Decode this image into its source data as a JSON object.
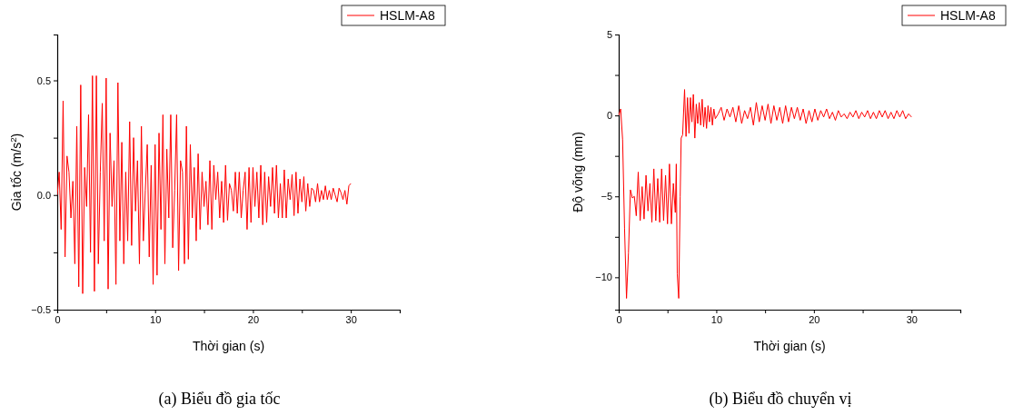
{
  "chart_data": [
    {
      "type": "line",
      "title": "(a)  Biểu đồ gia tốc",
      "xlabel": "Thời gian (s)",
      "ylabel": "Gia tốc (m/s$^{2}$)",
      "legend": "top right",
      "grid": false,
      "xlim": [
        0,
        35
      ],
      "xticks": [
        0,
        {
          "value": 5,
          "label": null
        },
        10,
        {
          "value": 15,
          "label": null
        },
        20,
        {
          "value": 25,
          "label": null
        },
        30,
        {
          "value": 35,
          "label": null
        }
      ],
      "ylim": [
        -0.5,
        0.7
      ],
      "yticks": [
        {
          "value": -0.5,
          "label": "−0.5"
        },
        {
          "value": -0.25,
          "label": null
        },
        {
          "value": 0,
          "label": "0.0"
        },
        {
          "value": 0.25,
          "label": null
        },
        0.5
      ],
      "series": [
        {
          "name": "HSLM-A8",
          "color": "#ff0000",
          "x": [
            0,
            0.2,
            0.4,
            0.6,
            0.8,
            1,
            1.2,
            1.4,
            1.6,
            1.8,
            2,
            2.2,
            2.4,
            2.6,
            2.8,
            3,
            3.2,
            3.4,
            3.6,
            3.8,
            4,
            4.2,
            4.4,
            4.6,
            4.8,
            5,
            5.2,
            5.4,
            5.6,
            5.8,
            6,
            6.2,
            6.4,
            6.6,
            6.8,
            7,
            7.2,
            7.4,
            7.6,
            7.8,
            8,
            8.2,
            8.4,
            8.6,
            8.8,
            9,
            9.2,
            9.4,
            9.6,
            9.8,
            10,
            10.2,
            10.4,
            10.6,
            10.8,
            11,
            11.2,
            11.4,
            11.6,
            11.8,
            12,
            12.2,
            12.4,
            12.6,
            12.8,
            13,
            13.2,
            13.4,
            13.6,
            13.8,
            14,
            14.2,
            14.4,
            14.6,
            14.8,
            15,
            15.2,
            15.4,
            15.6,
            15.8,
            16,
            16.2,
            16.4,
            16.6,
            16.8,
            17,
            17.2,
            17.4,
            17.6,
            17.8,
            18,
            18.2,
            18.4,
            18.6,
            18.8,
            19,
            19.2,
            19.4,
            19.6,
            19.8,
            20,
            20.2,
            20.4,
            20.6,
            20.8,
            21,
            21.2,
            21.4,
            21.6,
            21.8,
            22,
            22.2,
            22.4,
            22.6,
            22.8,
            23,
            23.2,
            23.4,
            23.6,
            23.8,
            24,
            24.2,
            24.4,
            24.6,
            24.8,
            25,
            25.2,
            25.4,
            25.6,
            25.8,
            26,
            26.2,
            26.4,
            26.6,
            26.8,
            27,
            27.2,
            27.4,
            27.6,
            27.8,
            28,
            28.2,
            28.4,
            28.6,
            28.8,
            29,
            29.2,
            29.4,
            29.6,
            29.8,
            30
          ],
          "values": [
            0,
            0.1,
            -0.15,
            0.41,
            -0.27,
            0.17,
            0.1,
            -0.1,
            0.06,
            -0.3,
            0.3,
            -0.4,
            0.48,
            -0.43,
            0.12,
            -0.05,
            0.35,
            -0.25,
            0.52,
            -0.42,
            0.52,
            -0.3,
            0.1,
            0.4,
            -0.2,
            0.51,
            -0.41,
            0.27,
            -0.05,
            0.15,
            -0.39,
            0.49,
            -0.2,
            0.23,
            -0.3,
            0.1,
            -0.2,
            0.32,
            -0.22,
            0.25,
            -0.07,
            0.15,
            -0.3,
            0.3,
            -0.2,
            0.02,
            0.22,
            -0.27,
            0.13,
            -0.39,
            0.22,
            -0.35,
            0.27,
            -0.15,
            0.35,
            -0.3,
            0.2,
            -0.1,
            0.35,
            -0.23,
            0.02,
            0.35,
            -0.33,
            0.15,
            0.1,
            -0.3,
            0.3,
            -0.28,
            0.22,
            -0.1,
            0.12,
            -0.2,
            0.18,
            -0.15,
            0.1,
            -0.05,
            0.06,
            -0.13,
            0.15,
            -0.15,
            0.13,
            -0.02,
            0.1,
            -0.1,
            0.06,
            -0.12,
            0.13,
            -0.11,
            0.05,
            0.02,
            -0.07,
            0.1,
            -0.08,
            0.1,
            -0.1,
            0.02,
            0.1,
            -0.15,
            0.12,
            -0.12,
            0.12,
            -0.05,
            0.1,
            -0.1,
            0.13,
            -0.13,
            0.1,
            -0.12,
            0.08,
            -0.05,
            0.12,
            -0.08,
            0.13,
            -0.1,
            0.05,
            -0.1,
            0.11,
            -0.1,
            0.07,
            -0.02,
            0.09,
            -0.09,
            0.1,
            -0.08,
            0.07,
            -0.03,
            0.08,
            -0.07,
            0.05,
            -0.05,
            0.03,
            0.02,
            -0.03,
            0.05,
            -0.03,
            0.02,
            -0.02,
            0.04,
            -0.02,
            0.02,
            -0.02,
            0.03,
            0,
            -0.03,
            0.03,
            0.01,
            -0.02,
            0.02,
            -0.04,
            0.04,
            0.05
          ]
        }
      ]
    },
    {
      "type": "line",
      "title": "(b)  Biểu đồ chuyển vị",
      "xlabel": "Thời gian (s)",
      "ylabel": "Độ võng (mm)",
      "legend": "top right",
      "grid": false,
      "xlim": [
        0,
        35
      ],
      "xticks": [
        0,
        {
          "value": 5,
          "label": null
        },
        10,
        {
          "value": 15,
          "label": null
        },
        20,
        {
          "value": 25,
          "label": null
        },
        30,
        {
          "value": 35,
          "label": null
        }
      ],
      "ylim": [
        -12,
        5
      ],
      "yticks": [
        {
          "value": -10,
          "label": "−10"
        },
        {
          "value": -7.5,
          "label": null
        },
        {
          "value": -5,
          "label": "−5"
        },
        {
          "value": -2.5,
          "label": null
        },
        0,
        {
          "value": 2.5,
          "label": null
        },
        5
      ],
      "series": [
        {
          "name": "HSLM-A8",
          "color": "#ff0000",
          "x": [
            0,
            0.2,
            0.4,
            0.6,
            0.8,
            1,
            1.2,
            1.4,
            1.6,
            1.8,
            2,
            2.2,
            2.4,
            2.6,
            2.8,
            3,
            3.2,
            3.4,
            3.6,
            3.8,
            4,
            4.2,
            4.4,
            4.6,
            4.8,
            5,
            5.2,
            5.4,
            5.6,
            5.8,
            5.9,
            6,
            6.15,
            6.3,
            6.4,
            6.55,
            6.75,
            6.9,
            7.05,
            7.2,
            7.35,
            7.5,
            7.65,
            7.8,
            7.95,
            8.1,
            8.25,
            8.4,
            8.55,
            8.7,
            8.85,
            9,
            9.15,
            9.3,
            9.45,
            9.6,
            9.75,
            9.9,
            10.2,
            10.5,
            10.8,
            11.1,
            11.4,
            11.7,
            12,
            12.3,
            12.6,
            12.9,
            13.2,
            13.5,
            13.8,
            14.1,
            14.4,
            14.7,
            15,
            15.3,
            15.6,
            15.9,
            16.2,
            16.5,
            16.8,
            17.1,
            17.4,
            17.7,
            18,
            18.3,
            18.6,
            18.9,
            19.2,
            19.5,
            19.8,
            20.1,
            20.4,
            20.7,
            21,
            21.3,
            21.6,
            21.9,
            22.2,
            22.5,
            22.8,
            23.1,
            23.4,
            23.7,
            24,
            24.3,
            24.6,
            24.9,
            25.2,
            25.5,
            25.8,
            26.1,
            26.4,
            26.7,
            27,
            27.3,
            27.6,
            27.9,
            28.2,
            28.5,
            28.8,
            29.1,
            29.4,
            29.7,
            30
          ],
          "values": [
            0,
            0.4,
            -1.5,
            -7,
            -11.3,
            -8.5,
            -4.6,
            -5.1,
            -5,
            -6.2,
            -3.5,
            -6.5,
            -4.4,
            -6.4,
            -3.7,
            -5.9,
            -4.2,
            -6.6,
            -3.3,
            -6.5,
            -3.9,
            -6.6,
            -3.3,
            -6.5,
            -3.7,
            -6.7,
            -3,
            -6.7,
            -4.2,
            -6,
            -3,
            -9.8,
            -11.3,
            -5,
            -1.4,
            -1.2,
            1.6,
            -1.3,
            1.1,
            -1.1,
            1.1,
            -0.4,
            1.3,
            -1.4,
            0.7,
            -0.5,
            0.8,
            -0.6,
            1,
            -0.7,
            0.5,
            -0.8,
            0.6,
            -0.4,
            0.5,
            -0.6,
            0.4,
            -0.2,
            0.1,
            0.5,
            -0.3,
            0.4,
            -0.1,
            0.5,
            -0.4,
            0.6,
            -0.5,
            0.3,
            -0.2,
            0.5,
            -0.6,
            0.8,
            -0.4,
            0.6,
            -0.3,
            0.7,
            -0.5,
            0.6,
            -0.3,
            0.5,
            -0.5,
            0.6,
            -0.4,
            0.5,
            -0.2,
            0.5,
            -0.3,
            0.4,
            -0.5,
            0.3,
            -0.4,
            0.4,
            -0.3,
            0.3,
            -0.1,
            0.4,
            -0.2,
            0.2,
            -0.3,
            0.3,
            -0.1,
            0.1,
            -0.2,
            0.2,
            -0.1,
            0.3,
            -0.2,
            0.2,
            -0.1,
            0.3,
            -0.2,
            0.2,
            -0.2,
            0.3,
            -0.1,
            0.3,
            -0.2,
            0.2,
            -0.2,
            0.3,
            -0.1,
            0.3,
            -0.2,
            0.1,
            -0.1
          ]
        }
      ]
    }
  ]
}
